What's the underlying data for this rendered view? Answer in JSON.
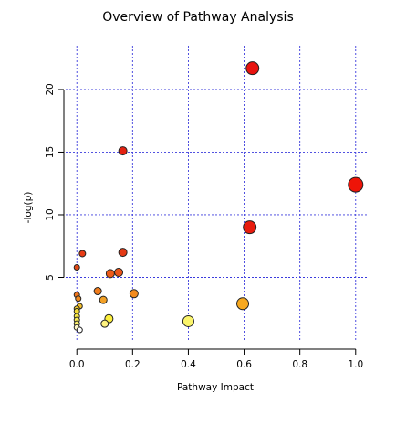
{
  "chart_data": {
    "type": "scatter",
    "title": "Overview of Pathway Analysis",
    "xlabel": "Pathway Impact",
    "ylabel": "-log(p)",
    "xlim": [
      -0.04,
      1.04
    ],
    "ylim": [
      0,
      23.5
    ],
    "x_ticks": [
      0.0,
      0.2,
      0.4,
      0.6,
      0.8,
      1.0
    ],
    "x_tick_labels": [
      "0.0",
      "0.2",
      "0.4",
      "0.6",
      "0.8",
      "1.0"
    ],
    "y_ticks": [
      5,
      10,
      15,
      20
    ],
    "y_tick_labels": [
      "5",
      "10",
      "15",
      "20"
    ],
    "grid": true,
    "grid_color": "#3b3bdd",
    "encoding": "point color runs white (low -log p) to red (high -log p); point size grows with pathway impact",
    "points": [
      {
        "x": 0.63,
        "y": 21.7,
        "size": 7,
        "color": "#e8130f"
      },
      {
        "x": 0.165,
        "y": 15.1,
        "size": 4.5,
        "color": "#e42212"
      },
      {
        "x": 1.0,
        "y": 12.4,
        "size": 8,
        "color": "#ee1408"
      },
      {
        "x": 0.62,
        "y": 9.0,
        "size": 7,
        "color": "#e81c0e"
      },
      {
        "x": 0.02,
        "y": 6.9,
        "size": 3.5,
        "color": "#e83c15"
      },
      {
        "x": 0.165,
        "y": 7.0,
        "size": 4.5,
        "color": "#e43a15"
      },
      {
        "x": 0.0,
        "y": 5.8,
        "size": 3,
        "color": "#e24a17"
      },
      {
        "x": 0.12,
        "y": 5.3,
        "size": 4.5,
        "color": "#ec5a18"
      },
      {
        "x": 0.15,
        "y": 5.4,
        "size": 4.5,
        "color": "#ea5418"
      },
      {
        "x": 0.075,
        "y": 3.9,
        "size": 4,
        "color": "#f07c1c"
      },
      {
        "x": 0.205,
        "y": 3.7,
        "size": 4.5,
        "color": "#f38b1f"
      },
      {
        "x": 0.095,
        "y": 3.2,
        "size": 4,
        "color": "#f2a026"
      },
      {
        "x": 0.0,
        "y": 3.6,
        "size": 3,
        "color": "#f1761c"
      },
      {
        "x": 0.005,
        "y": 3.3,
        "size": 3,
        "color": "#f08a1f"
      },
      {
        "x": 0.595,
        "y": 2.9,
        "size": 6.5,
        "color": "#f7a81e"
      },
      {
        "x": 0.01,
        "y": 2.7,
        "size": 3,
        "color": "#f5c02a"
      },
      {
        "x": 0.0,
        "y": 2.5,
        "size": 3,
        "color": "#f6d030"
      },
      {
        "x": 0.0,
        "y": 2.3,
        "size": 3,
        "color": "#f6dd38"
      },
      {
        "x": 0.115,
        "y": 1.7,
        "size": 4.5,
        "color": "#fcef3c"
      },
      {
        "x": 0.4,
        "y": 1.5,
        "size": 6,
        "color": "#fbf56c"
      },
      {
        "x": 0.1,
        "y": 1.3,
        "size": 4,
        "color": "#fff380"
      },
      {
        "x": 0.0,
        "y": 1.9,
        "size": 3,
        "color": "#f9ea45"
      },
      {
        "x": 0.0,
        "y": 1.6,
        "size": 3,
        "color": "#fbee55"
      },
      {
        "x": 0.0,
        "y": 1.3,
        "size": 3,
        "color": "#fdf16a"
      },
      {
        "x": 0.0,
        "y": 1.0,
        "size": 3,
        "color": "#fff8c8"
      },
      {
        "x": 0.01,
        "y": 0.8,
        "size": 3,
        "color": "#ffffff"
      }
    ]
  }
}
